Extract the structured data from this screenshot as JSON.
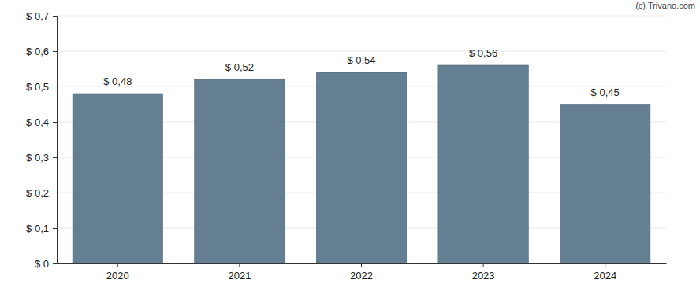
{
  "chart_data": {
    "type": "bar",
    "categories": [
      "2020",
      "2021",
      "2022",
      "2023",
      "2024"
    ],
    "values": [
      0.48,
      0.52,
      0.54,
      0.56,
      0.45
    ],
    "value_labels": [
      "$ 0,48",
      "$ 0,52",
      "$ 0,54",
      "$ 0,56",
      "$ 0,45"
    ],
    "data_labels": true,
    "color": "#647f91",
    "ylim": [
      0,
      0.7
    ],
    "yticks": [
      {
        "value": 0,
        "label": "$ 0"
      },
      {
        "value": 0.1,
        "label": "$ 0,1"
      },
      {
        "value": 0.2,
        "label": "$ 0,2"
      },
      {
        "value": 0.3,
        "label": "$ 0,3"
      },
      {
        "value": 0.4,
        "label": "$ 0,4"
      },
      {
        "value": 0.5,
        "label": "$ 0,5"
      },
      {
        "value": 0.6,
        "label": "$ 0,6"
      },
      {
        "value": 0.7,
        "label": "$ 0,7"
      }
    ],
    "grid": true,
    "annotations": [
      "(c) Trivano.com"
    ]
  }
}
